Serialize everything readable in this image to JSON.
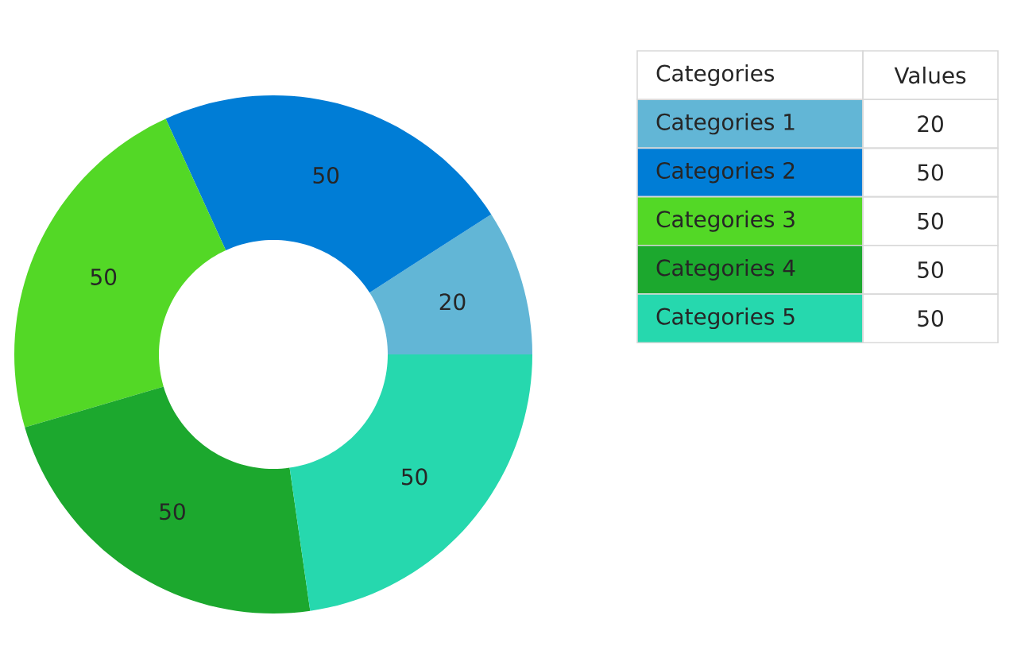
{
  "chart_data": [
    {
      "type": "donut",
      "categories": [
        null,
        null,
        null,
        null,
        null
      ],
      "values": [
        20,
        50,
        50,
        50,
        50
      ],
      "colors": [
        "#62b6d6",
        "#007dd6",
        "#53d826",
        "#1ca82e",
        "#26d8ae"
      ],
      "data_labels": true
    },
    {
      "type": "other",
      "annotations": [
        "Categories",
        "Values"
      ],
      "categories": [
        "Categories 1",
        "Categories 2",
        "Categories 3",
        "Categories 4",
        "Categories 5"
      ],
      "values": [
        20,
        50,
        50,
        50,
        50
      ],
      "colors": [
        "#62b6d6",
        "#007dd6",
        "#53d826",
        "#1ca82e",
        "#26d8ae"
      ],
      "data_labels": true
    }
  ]
}
